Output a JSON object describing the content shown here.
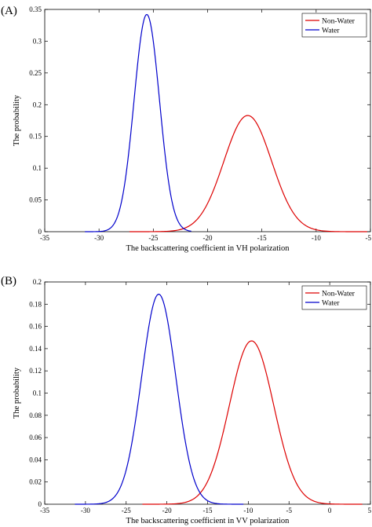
{
  "figure": {
    "type": "line-chart-figure"
  },
  "colors": {
    "non_water": "#dd0000",
    "water": "#0000cc",
    "axis": "#000000"
  },
  "chart_data": [
    {
      "type": "line",
      "panel_label": "(A)",
      "xlabel": "The backscattering coefficient in VH polarization",
      "ylabel": "The probability",
      "xlim": [
        -35,
        -5
      ],
      "ylim": [
        0,
        0.35
      ],
      "xticks": [
        -35,
        -30,
        -25,
        -20,
        -15,
        -10,
        -5
      ],
      "xtick_labels": [
        "-35",
        "-30",
        "-25",
        "-20",
        "-15",
        "-10",
        "-5"
      ],
      "yticks": [
        0,
        0.05,
        0.1,
        0.15,
        0.2,
        0.25,
        0.3,
        0.35
      ],
      "ytick_labels": [
        "0",
        "0.05",
        "0.1",
        "0.15",
        "0.2",
        "0.25",
        "0.3",
        "0.35"
      ],
      "grid": false,
      "legend_position": "top-right",
      "series": [
        {
          "name": "Non-Water",
          "color": "#dd0000",
          "distribution": "gaussian",
          "mean": -16.3,
          "peak": 0.183,
          "sd": 2.2,
          "x_range": [
            -27.2,
            -5.3
          ]
        },
        {
          "name": "Water",
          "color": "#0000cc",
          "distribution": "gaussian",
          "mean": -25.6,
          "peak": 0.342,
          "sd": 1.17,
          "x_range": [
            -31.3,
            -21.5
          ]
        }
      ]
    },
    {
      "type": "line",
      "panel_label": "(B)",
      "xlabel": "The backscattering coefficient in VV polarization",
      "ylabel": "The probability",
      "xlim": [
        -35,
        5
      ],
      "ylim": [
        0,
        0.2
      ],
      "xticks": [
        -35,
        -30,
        -25,
        -20,
        -15,
        -10,
        -5,
        0,
        5
      ],
      "xtick_labels": [
        "-35",
        "-30",
        "-25",
        "-20",
        "-15",
        "-10",
        "-5",
        "0",
        "5"
      ],
      "yticks": [
        0,
        0.02,
        0.04,
        0.06,
        0.08,
        0.1,
        0.12,
        0.14,
        0.16,
        0.18,
        0.2
      ],
      "ytick_labels": [
        "0",
        "0.02",
        "0.04",
        "0.06",
        "0.08",
        "0.1",
        "0.12",
        "0.14",
        "0.16",
        "0.18",
        "0.2"
      ],
      "grid": false,
      "legend_position": "top-right",
      "series": [
        {
          "name": "Non-Water",
          "color": "#dd0000",
          "distribution": "gaussian",
          "mean": -9.6,
          "peak": 0.147,
          "sd": 2.72,
          "x_range": [
            -23.0,
            4.0
          ]
        },
        {
          "name": "Water",
          "color": "#0000cc",
          "distribution": "gaussian",
          "mean": -21.0,
          "peak": 0.189,
          "sd": 2.1,
          "x_range": [
            -31.3,
            -10.6
          ]
        }
      ]
    }
  ]
}
